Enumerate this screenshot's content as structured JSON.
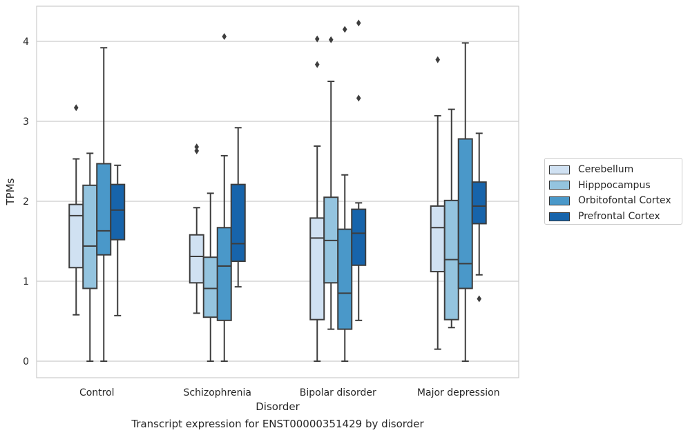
{
  "chart_data": {
    "type": "box",
    "title": "Transcript expression for ENST00000351429 by disorder",
    "xlabel": "Disorder",
    "ylabel": "TPMs",
    "ylim": [
      -0.2,
      4.45
    ],
    "yticks": [
      "0",
      "1",
      "2",
      "3",
      "4"
    ],
    "grid": "horizontal",
    "legend_position": "right",
    "categories": [
      "Control",
      "Schizophrenia",
      "Bipolar disorder",
      "Major depression"
    ],
    "series": [
      {
        "name": "Cerebellum",
        "color": "#d0e1f2",
        "boxes": [
          {
            "whislo": 0.58,
            "q1": 1.17,
            "med": 1.82,
            "q3": 1.96,
            "whishi": 2.53,
            "fliers": [
              3.17
            ]
          },
          {
            "whislo": 0.6,
            "q1": 0.98,
            "med": 1.31,
            "q3": 1.58,
            "whishi": 1.92,
            "fliers": [
              2.63,
              2.68
            ]
          },
          {
            "whislo": 0.0,
            "q1": 0.52,
            "med": 1.54,
            "q3": 1.79,
            "whishi": 2.69,
            "fliers": [
              3.71,
              4.03
            ]
          },
          {
            "whislo": 0.15,
            "q1": 1.12,
            "med": 1.67,
            "q3": 1.94,
            "whishi": 3.07,
            "fliers": [
              3.77
            ]
          }
        ]
      },
      {
        "name": "Hipppocampus",
        "color": "#94c4df",
        "boxes": [
          {
            "whislo": 0.0,
            "q1": 0.91,
            "med": 1.44,
            "q3": 2.2,
            "whishi": 2.6,
            "fliers": []
          },
          {
            "whislo": 0.0,
            "q1": 0.55,
            "med": 0.91,
            "q3": 1.3,
            "whishi": 2.1,
            "fliers": []
          },
          {
            "whislo": 0.4,
            "q1": 0.98,
            "med": 1.51,
            "q3": 2.05,
            "whishi": 3.5,
            "fliers": [
              4.02
            ]
          },
          {
            "whislo": 0.42,
            "q1": 0.52,
            "med": 1.27,
            "q3": 2.01,
            "whishi": 3.15,
            "fliers": []
          }
        ]
      },
      {
        "name": "Orbitofontal Cortex",
        "color": "#4a98c9",
        "boxes": [
          {
            "whislo": 0.0,
            "q1": 1.33,
            "med": 1.63,
            "q3": 2.47,
            "whishi": 3.92,
            "fliers": []
          },
          {
            "whislo": 0.0,
            "q1": 0.51,
            "med": 1.19,
            "q3": 1.67,
            "whishi": 2.57,
            "fliers": [
              4.06
            ]
          },
          {
            "whislo": 0.0,
            "q1": 0.4,
            "med": 0.85,
            "q3": 1.65,
            "whishi": 2.33,
            "fliers": [
              4.15
            ]
          },
          {
            "whislo": 0.0,
            "q1": 0.91,
            "med": 1.22,
            "q3": 2.78,
            "whishi": 3.98,
            "fliers": []
          }
        ]
      },
      {
        "name": "Prefrontal Cortex",
        "color": "#1764ab",
        "boxes": [
          {
            "whislo": 0.57,
            "q1": 1.52,
            "med": 1.89,
            "q3": 2.21,
            "whishi": 2.45,
            "fliers": []
          },
          {
            "whislo": 0.93,
            "q1": 1.25,
            "med": 1.47,
            "q3": 2.21,
            "whishi": 2.92,
            "fliers": []
          },
          {
            "whislo": 0.51,
            "q1": 1.2,
            "med": 1.6,
            "q3": 1.9,
            "whishi": 1.98,
            "fliers": [
              3.29,
              4.23
            ]
          },
          {
            "whislo": 1.08,
            "q1": 1.72,
            "med": 1.94,
            "q3": 2.24,
            "whishi": 2.85,
            "fliers": [
              0.78
            ]
          }
        ]
      }
    ]
  }
}
